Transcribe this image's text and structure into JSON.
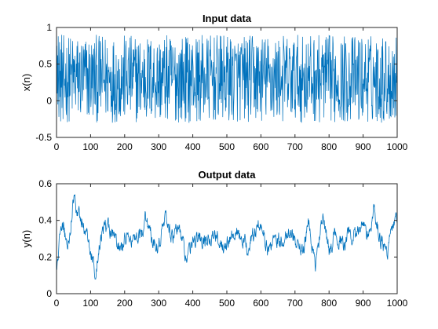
{
  "chart_data": [
    {
      "type": "line",
      "title": "Input data",
      "xlabel": "",
      "ylabel": "x(n)",
      "xlim": [
        0,
        1000
      ],
      "ylim": [
        -0.5,
        1
      ],
      "xticks": [
        "0",
        "100",
        "200",
        "300",
        "400",
        "500",
        "600",
        "700",
        "800",
        "900",
        "1000"
      ],
      "yticks": [
        "-0.5",
        "0",
        "0.5",
        "1"
      ],
      "grid": false,
      "color": "#0072BD",
      "series": [
        {
          "n_points": 1000,
          "x_start": 1,
          "y_range": [
            -0.3,
            0.9
          ],
          "sample_y": [
            0.75,
            0.1,
            0.62,
            -0.05,
            0.88,
            0.3,
            -0.22,
            0.55,
            0.8,
            0.05,
            0.41,
            -0.28,
            0.7,
            0.18,
            0.9,
            -0.1,
            0.35,
            0.66,
            -0.25,
            0.5
          ]
        }
      ]
    },
    {
      "type": "line",
      "title": "Output data",
      "xlabel": "",
      "ylabel": "y(n)",
      "xlim": [
        0,
        1000
      ],
      "ylim": [
        0,
        0.6
      ],
      "xticks": [
        "0",
        "100",
        "200",
        "300",
        "400",
        "500",
        "600",
        "700",
        "800",
        "900",
        "1000"
      ],
      "yticks": [
        "0",
        "0.2",
        "0.4",
        "0.6"
      ],
      "grid": false,
      "color": "#0072BD",
      "series": [
        {
          "n_points": 1000,
          "x_start": 1,
          "y_range": [
            0.08,
            0.55
          ],
          "anchors_x": [
            0,
            10,
            20,
            30,
            40,
            50,
            60,
            80,
            100,
            115,
            130,
            150,
            170,
            190,
            210,
            230,
            250,
            260,
            280,
            300,
            320,
            340,
            360,
            380,
            400,
            430,
            460,
            490,
            520,
            540,
            560,
            580,
            600,
            620,
            640,
            660,
            680,
            700,
            720,
            740,
            760,
            780,
            800,
            820,
            840,
            860,
            880,
            900,
            920,
            930,
            950,
            970,
            990,
            1000
          ],
          "anchors_y": [
            0.1,
            0.32,
            0.38,
            0.26,
            0.34,
            0.53,
            0.44,
            0.38,
            0.22,
            0.12,
            0.32,
            0.38,
            0.3,
            0.24,
            0.32,
            0.28,
            0.3,
            0.43,
            0.3,
            0.27,
            0.42,
            0.3,
            0.36,
            0.2,
            0.28,
            0.3,
            0.32,
            0.27,
            0.35,
            0.3,
            0.25,
            0.32,
            0.4,
            0.22,
            0.33,
            0.28,
            0.35,
            0.3,
            0.22,
            0.38,
            0.15,
            0.42,
            0.24,
            0.34,
            0.26,
            0.34,
            0.3,
            0.4,
            0.3,
            0.47,
            0.3,
            0.22,
            0.38,
            0.39
          ]
        }
      ]
    }
  ]
}
